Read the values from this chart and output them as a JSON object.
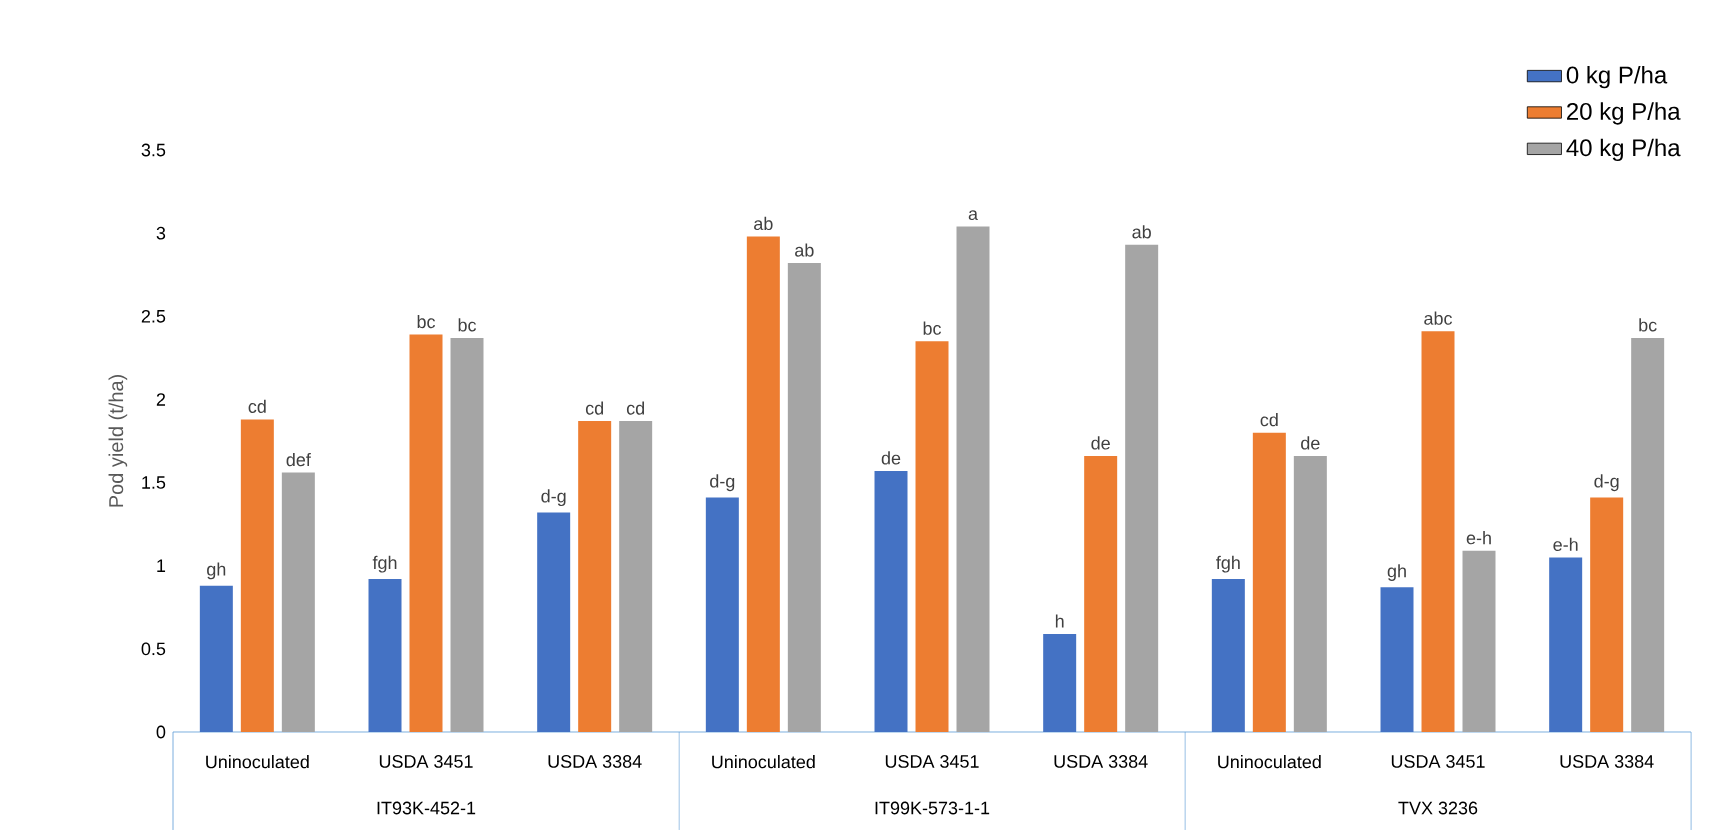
{
  "chart_data": {
    "type": "bar",
    "ylabel": "Pod yield (t/ha)",
    "categories": [
      "Uninoculated",
      "USDA 3451",
      "USDA 3384",
      "Uninoculated",
      "USDA 3451",
      "USDA 3384",
      "Uninoculated",
      "USDA 3451",
      "USDA 3384"
    ],
    "annotations": [
      "IT93K-452-1",
      "IT99K-573-1-1",
      "TVX 3236"
    ],
    "ylim": [
      0,
      3.5
    ],
    "yticks": [
      0,
      0.5,
      1,
      1.5,
      2,
      2.5,
      3,
      3.5
    ],
    "legend": "top right",
    "series": [
      {
        "name": "0 kg P/ha",
        "color": "#4472c4",
        "values": [
          0.88,
          0.92,
          1.32,
          1.41,
          1.57,
          0.59,
          0.92,
          0.87,
          1.05
        ],
        "value_labels": [
          "gh",
          "fgh",
          "d-g",
          "d-g",
          "de",
          "h",
          "fgh",
          "gh",
          "e-h"
        ]
      },
      {
        "name": "20 kg P/ha",
        "color": "#ed7d31",
        "values": [
          1.88,
          2.39,
          1.87,
          2.98,
          2.35,
          1.66,
          1.8,
          2.41,
          1.41
        ],
        "value_labels": [
          "cd",
          "bc",
          "cd",
          "ab",
          "bc",
          "de",
          "cd",
          "abc",
          "d-g"
        ]
      },
      {
        "name": "40 kg P/ha",
        "color": "#a5a5a5",
        "values": [
          1.56,
          2.37,
          1.87,
          2.82,
          3.04,
          2.93,
          1.66,
          1.09,
          2.37
        ],
        "value_labels": [
          "def",
          "bc",
          "cd",
          "ab",
          "a",
          "ab",
          "de",
          "e-h",
          "bc"
        ]
      }
    ]
  }
}
